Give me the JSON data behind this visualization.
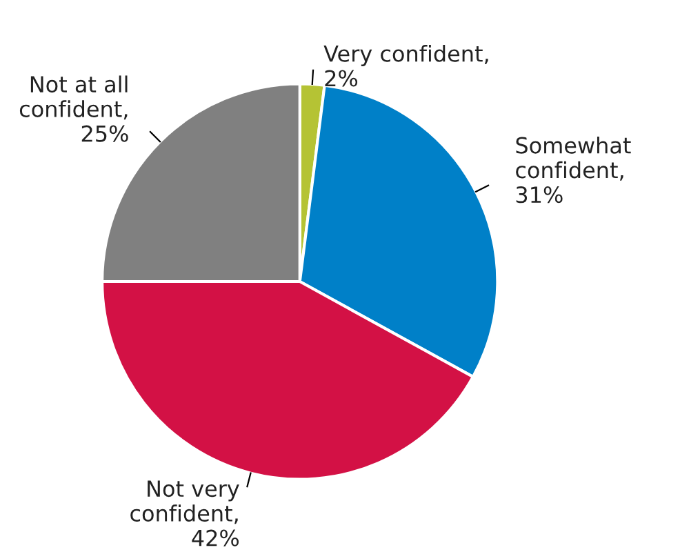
{
  "chart_data": {
    "type": "pie",
    "categories": [
      "Very confident",
      "Somewhat\nconfident",
      "Not very\nconfident",
      "Not at all\nconfident"
    ],
    "values": [
      2,
      31,
      42,
      25
    ],
    "colors": [
      "#b5c334",
      "#0080c8",
      "#d31145",
      "#808080"
    ],
    "value_labels": [
      ",\n2%",
      ",\n31%",
      ",\n42%",
      ",\n25%"
    ]
  }
}
